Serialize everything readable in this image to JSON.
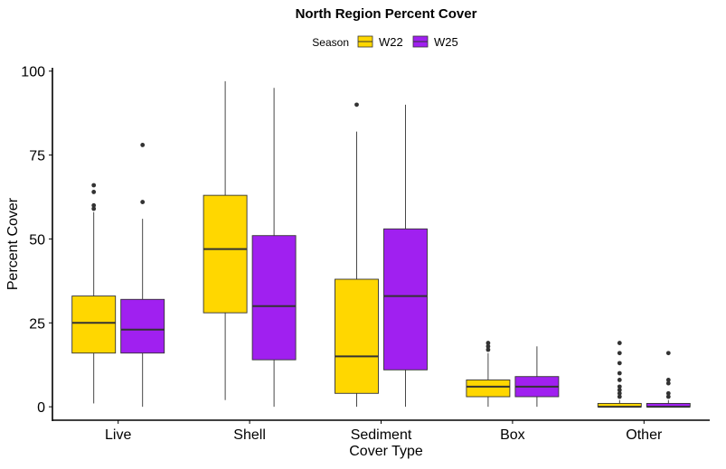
{
  "chart_data": {
    "type": "boxplot",
    "title": "North Region Percent Cover",
    "xlabel": "Cover Type",
    "ylabel": "Percent Cover",
    "ylim": [
      -4,
      101
    ],
    "yticks": [
      0,
      25,
      50,
      75,
      100
    ],
    "categories": [
      "Live",
      "Shell",
      "Sediment",
      "Box",
      "Other"
    ],
    "grid": false,
    "legend": {
      "title": "Season",
      "position": "top",
      "entries": [
        "W22",
        "W25"
      ]
    },
    "series": [
      {
        "name": "W22",
        "color": "#FFD700",
        "boxes": [
          {
            "category": "Live",
            "min": 1,
            "q1": 16,
            "median": 25,
            "q3": 33,
            "max": 58,
            "outliers": [
              59,
              60,
              64,
              66
            ]
          },
          {
            "category": "Shell",
            "min": 2,
            "q1": 28,
            "median": 47,
            "q3": 63,
            "max": 97,
            "outliers": []
          },
          {
            "category": "Sediment",
            "min": 0,
            "q1": 4,
            "median": 15,
            "q3": 38,
            "max": 82,
            "outliers": [
              90
            ]
          },
          {
            "category": "Box",
            "min": 0,
            "q1": 3,
            "median": 6,
            "q3": 8,
            "max": 16,
            "outliers": [
              17,
              18,
              19
            ]
          },
          {
            "category": "Other",
            "min": 0,
            "q1": 0,
            "median": 0,
            "q3": 1,
            "max": 2,
            "outliers": [
              3,
              4,
              5,
              6,
              8,
              10,
              13,
              16,
              19
            ]
          }
        ]
      },
      {
        "name": "W25",
        "color": "#A020F0",
        "boxes": [
          {
            "category": "Live",
            "min": 0,
            "q1": 16,
            "median": 23,
            "q3": 32,
            "max": 56,
            "outliers": [
              61,
              78
            ]
          },
          {
            "category": "Shell",
            "min": 0,
            "q1": 14,
            "median": 30,
            "q3": 51,
            "max": 95,
            "outliers": []
          },
          {
            "category": "Sediment",
            "min": 0,
            "q1": 11,
            "median": 33,
            "q3": 53,
            "max": 90,
            "outliers": []
          },
          {
            "category": "Box",
            "min": 0,
            "q1": 3,
            "median": 6,
            "q3": 9,
            "max": 18,
            "outliers": []
          },
          {
            "category": "Other",
            "min": 0,
            "q1": 0,
            "median": 0,
            "q3": 1,
            "max": 2,
            "outliers": [
              3,
              4,
              7,
              8,
              16
            ]
          }
        ]
      }
    ]
  }
}
